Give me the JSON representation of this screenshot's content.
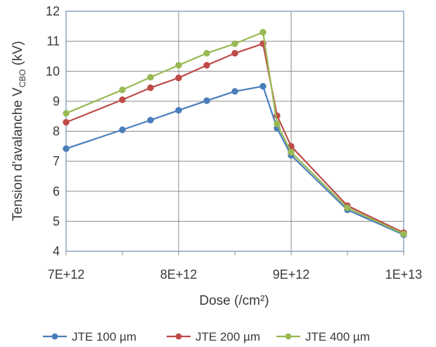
{
  "chart_data": {
    "type": "line",
    "title": "",
    "xlabel": "Dose (/cm²)",
    "ylabel": {
      "prefix": "Tension d'avalanche V",
      "subscript": "CBO",
      "suffix": " (kV)"
    },
    "xlim": [
      7000000000000.0,
      10000000000000.0
    ],
    "ylim": [
      4,
      12
    ],
    "x_ticks": [
      7000000000000.0,
      8000000000000.0,
      9000000000000.0,
      10000000000000.0
    ],
    "x_tick_labels": [
      "7E+12",
      "8E+12",
      "9E+12",
      "1E+13"
    ],
    "x_minor_ticks": [
      7500000000000.0,
      8500000000000.0,
      9500000000000.0
    ],
    "y_ticks": [
      4,
      5,
      6,
      7,
      8,
      9,
      10,
      11,
      12
    ],
    "y_tick_labels": [
      "4",
      "5",
      "6",
      "7",
      "8",
      "9",
      "10",
      "11",
      "12"
    ],
    "grid": {
      "horizontal": true,
      "vertical": true
    },
    "legend_position": "bottom",
    "series": [
      {
        "name": "JTE 100 µm",
        "color": "#4a7ebb",
        "x": [
          7000000000000.0,
          7500000000000.0,
          7750000000000.0,
          8000000000000.0,
          8250000000000.0,
          8500000000000.0,
          8750000000000.0,
          8875000000000.0,
          9000000000000.0,
          9500000000000.0,
          10000000000000.0
        ],
        "values": [
          7.42,
          8.05,
          8.37,
          8.7,
          9.02,
          9.33,
          9.5,
          8.1,
          7.2,
          5.38,
          4.55
        ]
      },
      {
        "name": "JTE 200 µm",
        "color": "#be4b48",
        "x": [
          7000000000000.0,
          7500000000000.0,
          7750000000000.0,
          8000000000000.0,
          8250000000000.0,
          8500000000000.0,
          8750000000000.0,
          8875000000000.0,
          9000000000000.0,
          9500000000000.0,
          10000000000000.0
        ],
        "values": [
          8.3,
          9.05,
          9.45,
          9.78,
          10.2,
          10.6,
          10.92,
          8.52,
          7.5,
          5.52,
          4.62
        ]
      },
      {
        "name": "JTE 400 µm",
        "color": "#98b954",
        "x": [
          7000000000000.0,
          7500000000000.0,
          7750000000000.0,
          8000000000000.0,
          8250000000000.0,
          8500000000000.0,
          8750000000000.0,
          8875000000000.0,
          9000000000000.0,
          9500000000000.0,
          10000000000000.0
        ],
        "values": [
          8.6,
          9.38,
          9.8,
          10.2,
          10.6,
          10.92,
          11.3,
          8.25,
          7.3,
          5.45,
          4.58
        ]
      }
    ]
  }
}
